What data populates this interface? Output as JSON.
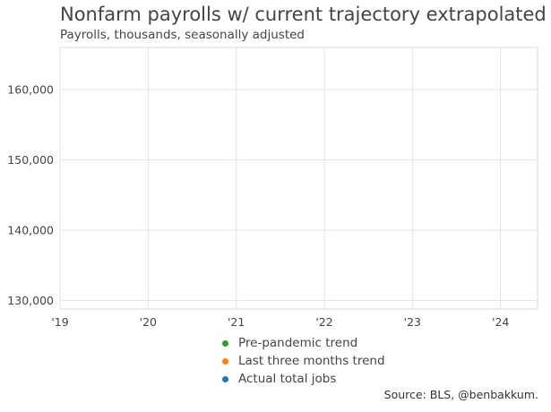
{
  "chart_data": {
    "type": "line",
    "title": "Nonfarm payrolls w/ current trajectory extrapolated",
    "subtitle": "Payrolls, thousands, seasonally adjusted",
    "xlabel": "",
    "ylabel": "",
    "x_ticks": [
      "'19",
      "'20",
      "'21",
      "'22",
      "'23",
      "'24"
    ],
    "y_ticks": [
      "130,000",
      "140,000",
      "150,000",
      "160,000"
    ],
    "y_tick_values": [
      130000,
      140000,
      150000,
      160000
    ],
    "ylim": [
      128800,
      166000
    ],
    "xlim": [
      2019,
      2024.42
    ],
    "grid": true,
    "legend_position": "bottom",
    "series": [
      {
        "name": "Pre-pandemic trend",
        "color": "#2ca02c",
        "x": [],
        "values": []
      },
      {
        "name": "Last three months trend",
        "color": "#ff7f0e",
        "x": [],
        "values": []
      },
      {
        "name": "Actual total jobs",
        "color": "#1f77b4",
        "x": [],
        "values": []
      }
    ],
    "source": "Source: BLS, @benbakkum."
  }
}
